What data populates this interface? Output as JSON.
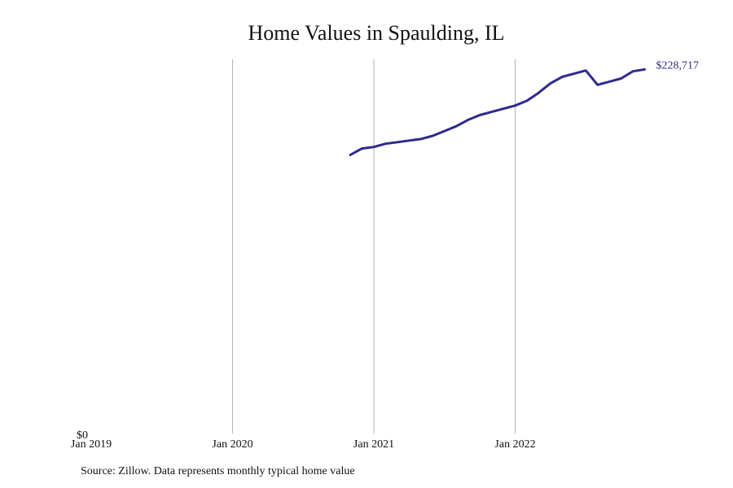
{
  "chart_data": {
    "type": "line",
    "title": "Home Values in Spaulding, IL",
    "xlabel": "",
    "ylabel": "",
    "x_ticks": [
      "Jan 2019",
      "Jan 2020",
      "Jan 2021",
      "Jan 2022"
    ],
    "x_range": [
      "2019-01",
      "2023-01"
    ],
    "y_ticks": [
      "$0"
    ],
    "ylim": [
      0,
      235000
    ],
    "grid": "vertical",
    "legend": "none",
    "line_color": "#2d2a8c",
    "end_label": "$228,717",
    "series": [
      {
        "x": [
          "2020-11",
          "2020-12",
          "2021-01",
          "2021-02",
          "2021-03",
          "2021-04",
          "2021-05",
          "2021-06",
          "2021-07",
          "2021-08",
          "2021-09",
          "2021-10",
          "2021-11",
          "2021-12",
          "2022-01",
          "2022-02",
          "2022-03",
          "2022-04",
          "2022-05",
          "2022-06",
          "2022-07",
          "2022-08",
          "2022-09",
          "2022-10",
          "2022-11",
          "2022-12"
        ],
        "values": [
          175000,
          179000,
          180000,
          182000,
          183000,
          184000,
          185000,
          187000,
          190000,
          193000,
          197000,
          200000,
          202000,
          204000,
          206000,
          209000,
          214000,
          220000,
          224000,
          226000,
          228000,
          219000,
          221000,
          223000,
          227500,
          228717
        ]
      }
    ]
  },
  "source_note": "Source: Zillow. Data represents monthly typical home value"
}
